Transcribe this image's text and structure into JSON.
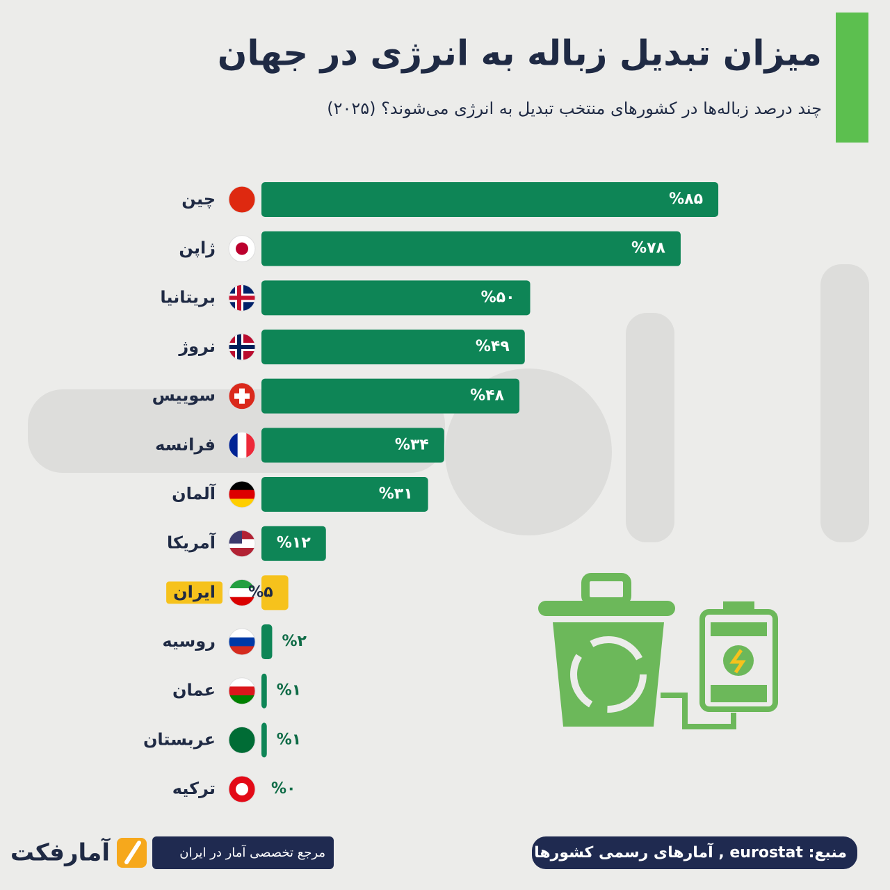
{
  "chart_data": {
    "type": "barh",
    "title": "میزان تبدیل زباله به انرژی در جهان",
    "subtitle": "چند درصد زباله‌ها در کشورهای منتخب تبدیل به انرژی می‌شوند؟ (۲۰۲۵)",
    "categories": [
      "چین",
      "ژاپن",
      "بریتانیا",
      "نروژ",
      "سوییس",
      "فرانسه",
      "آلمان",
      "آمریکا",
      "ایران",
      "روسیه",
      "عمان",
      "عربستان",
      "ترکیه"
    ],
    "values": [
      85,
      78,
      50,
      49,
      48,
      34,
      31,
      12,
      5,
      2,
      1,
      1,
      0
    ],
    "value_labels": [
      "%۸۵",
      "%۷۸",
      "%۵۰",
      "%۴۹",
      "%۴۸",
      "%۳۴",
      "%۳۱",
      "%۱۲",
      "%۵",
      "%۲",
      "%۱",
      "%۱",
      "%۰"
    ],
    "colors": [
      "#0e8556",
      "#0e8556",
      "#0e8556",
      "#0e8556",
      "#0e8556",
      "#0e8556",
      "#0e8556",
      "#0e8556",
      "#f6c21c",
      "#0e8556",
      "#0e8556",
      "#0e8556",
      "#0e8556"
    ],
    "source": "منبع: eurostat , آمارهای رسمی کشورها",
    "tagline": "مرجع تخصصی آمار در ایران",
    "brand": "آمارفکت"
  }
}
